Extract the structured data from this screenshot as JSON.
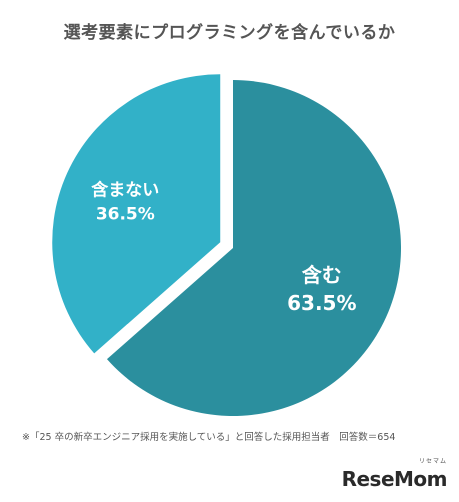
{
  "chart_data": {
    "type": "pie",
    "title": "選考要素にプログラミングを含んでいるか",
    "slices": [
      {
        "label": "含む",
        "value": 63.5,
        "display": "63.5%",
        "color": "#2b8f9e",
        "exploded": false
      },
      {
        "label": "含まない",
        "value": 36.5,
        "display": "36.5%",
        "color": "#32b1c8",
        "exploded": true
      }
    ],
    "footnote": "※「25 卒の新卒エンジニア採用を実施している」と回答した採用担当者　回答数＝654"
  },
  "brand": {
    "logo_text": "ReseMom",
    "logo_sub": "リセマム"
  }
}
